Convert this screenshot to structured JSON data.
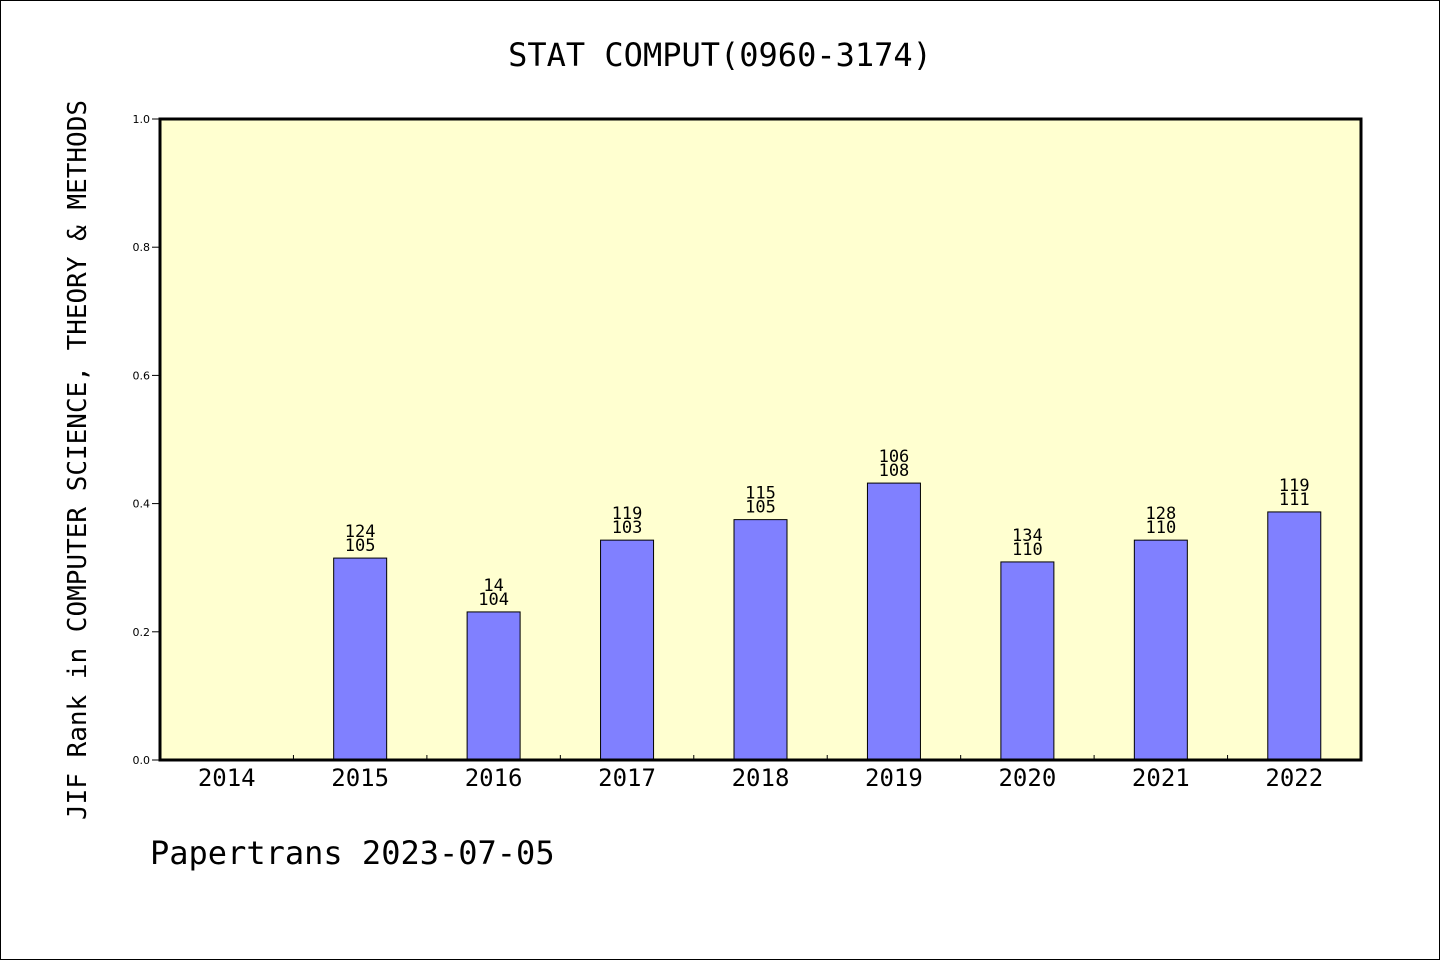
{
  "chart_data": {
    "type": "bar",
    "title": "STAT COMPUT(0960-3174)",
    "xlabel": "",
    "ylabel": "JIF Rank in COMPUTER SCIENCE, THEORY & METHODS",
    "ylim": [
      0,
      1.0
    ],
    "y_ticks": [
      "0.0",
      "0.2",
      "0.4",
      "0.6",
      "0.8",
      "1.0"
    ],
    "categories": [
      "2014",
      "2015",
      "2016",
      "2017",
      "2018",
      "2019",
      "2020",
      "2021",
      "2022"
    ],
    "values": [
      null,
      0.315,
      0.231,
      0.343,
      0.375,
      0.432,
      0.309,
      0.343,
      0.387
    ],
    "bar_labels": [
      null,
      [
        "124",
        "105"
      ],
      [
        "14",
        "104"
      ],
      [
        "119",
        "103"
      ],
      [
        "115",
        "105"
      ],
      [
        "106",
        "108"
      ],
      [
        "134",
        "110"
      ],
      [
        "128",
        "110"
      ],
      [
        "119",
        "111"
      ]
    ],
    "grid": false,
    "colors": {
      "plot_bg": "#ffffd0",
      "bar": "#8080ff",
      "axis": "#000000"
    }
  },
  "footer": {
    "note": "Papertrans 2023-07-05"
  }
}
